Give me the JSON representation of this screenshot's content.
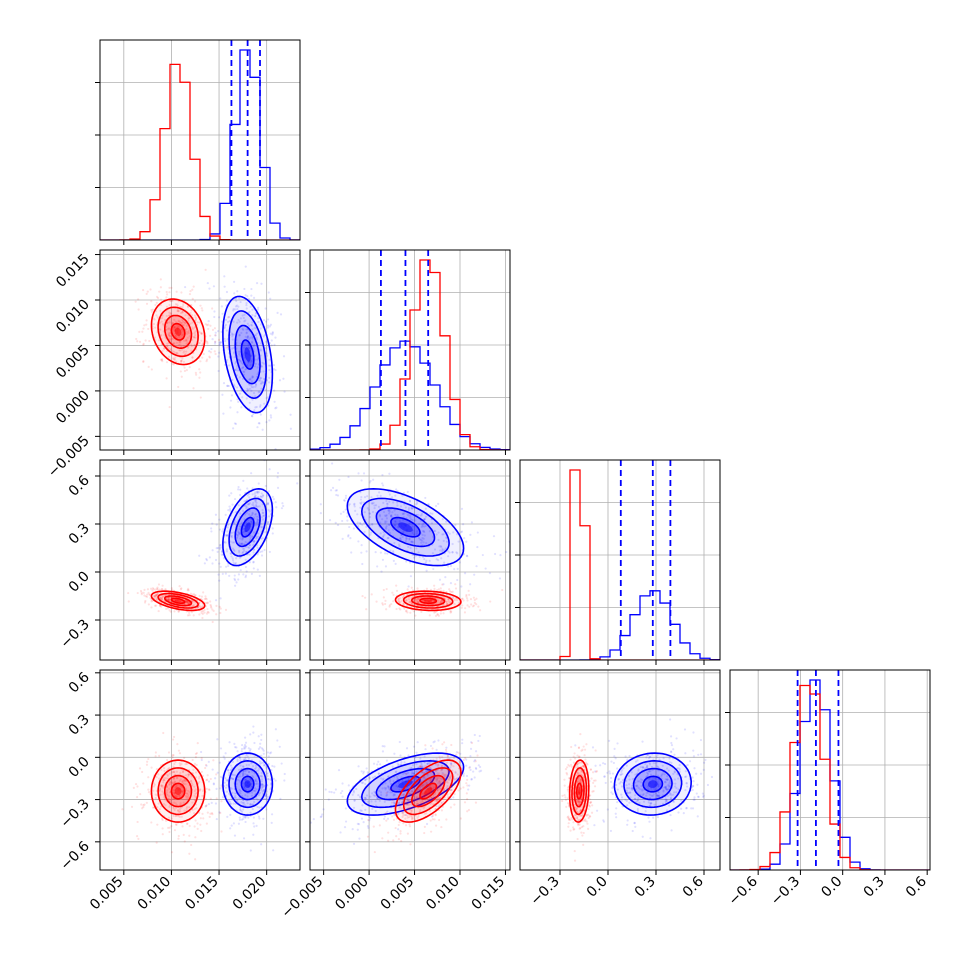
{
  "chart_data": {
    "type": "corner",
    "grid": true,
    "colors": {
      "blue": "#0000ff",
      "red": "#ff0000"
    },
    "params": [
      {
        "range": [
          0.0025,
          0.0235
        ],
        "ticks": [
          0.005,
          0.01,
          0.015,
          0.02
        ],
        "tick_labels": [
          "0.005",
          "0.010",
          "0.015",
          "0.020"
        ]
      },
      {
        "range": [
          -0.0065,
          0.0155
        ],
        "ticks": [
          -0.005,
          0.0,
          0.005,
          0.01,
          0.015
        ],
        "tick_labels": [
          "−0.005",
          "0.000",
          "0.005",
          "0.010",
          "0.015"
        ]
      },
      {
        "range": [
          -0.55,
          0.7
        ],
        "ticks": [
          -0.3,
          0.0,
          0.3,
          0.6
        ],
        "tick_labels": [
          "−0.3",
          "0.0",
          "0.3",
          "0.6"
        ]
      },
      {
        "range": [
          -0.8,
          0.62
        ],
        "ticks": [
          -0.6,
          -0.3,
          0.0,
          0.3,
          0.6
        ],
        "tick_labels": [
          "−0.6",
          "−0.3",
          "0.0",
          "0.3",
          "0.6"
        ]
      }
    ],
    "series": [
      {
        "color": "#0000ff",
        "means": [
          0.018,
          0.004,
          0.28,
          -0.19
        ],
        "sds": [
          0.0013,
          0.0032,
          0.12,
          0.11
        ],
        "quantiles": [
          [
            0.0163,
            0.018,
            0.0193
          ],
          [
            0.0013,
            0.004,
            0.0065
          ],
          [
            0.08,
            0.28,
            0.39
          ],
          [
            -0.32,
            -0.19,
            -0.03
          ]
        ]
      },
      {
        "color": "#ff0000",
        "means": [
          0.0107,
          0.0065,
          -0.18,
          -0.24
        ],
        "sds": [
          0.0014,
          0.0018,
          0.03,
          0.11
        ],
        "quantiles": []
      }
    ],
    "correlations": [
      {
        "pair": [
          0,
          1
        ],
        "blue": -0.35,
        "red": -0.2
      },
      {
        "pair": [
          0,
          2
        ],
        "blue": 0.45,
        "red": -0.5
      },
      {
        "pair": [
          1,
          2
        ],
        "blue": -0.55,
        "red": -0.1
      },
      {
        "pair": [
          0,
          3
        ],
        "blue": 0.0,
        "red": 0.0
      },
      {
        "pair": [
          1,
          3
        ],
        "blue": 0.55,
        "red": 0.6
      },
      {
        "pair": [
          2,
          3
        ],
        "blue": 0.05,
        "red": 0.1
      }
    ]
  }
}
